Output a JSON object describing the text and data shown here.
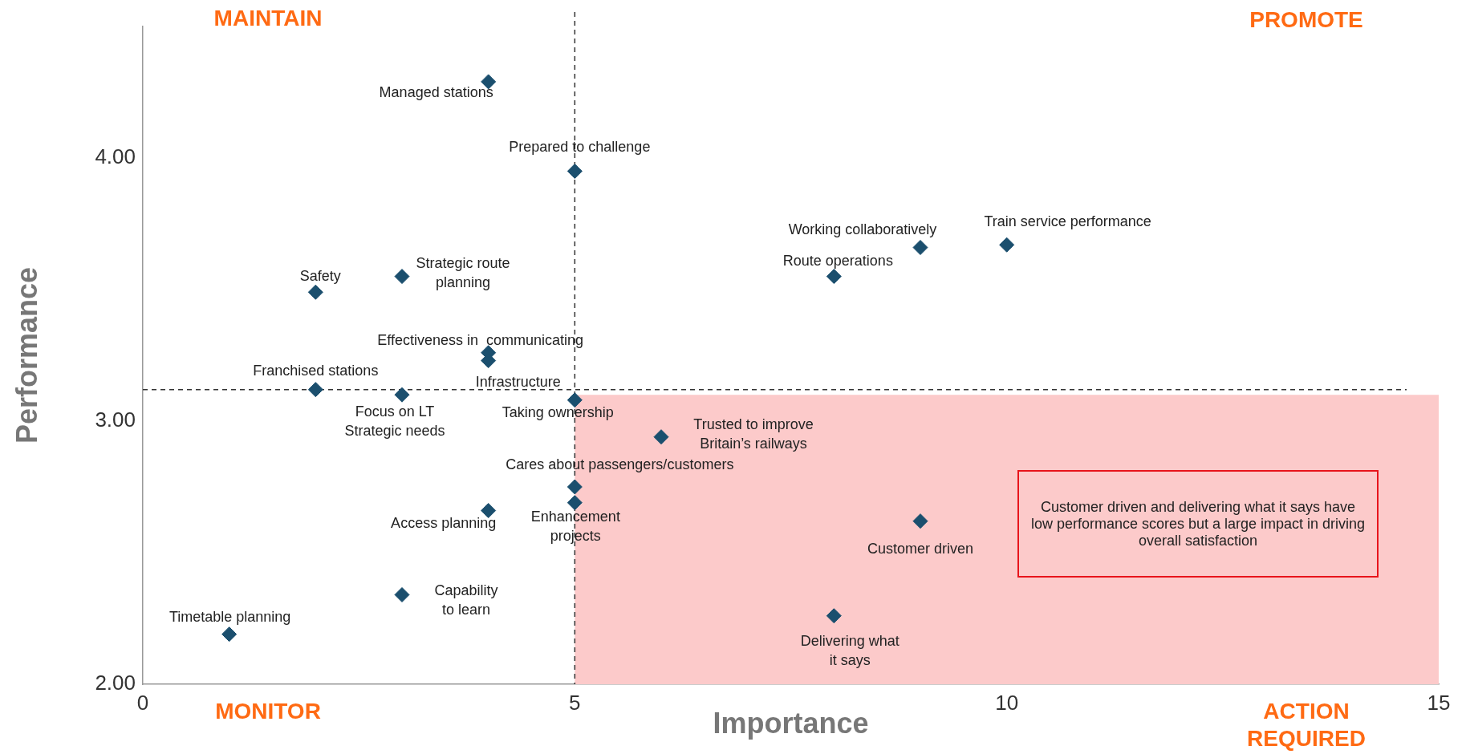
{
  "chart_data": {
    "type": "scatter",
    "xlabel": "Importance",
    "ylabel": "Performance",
    "xlim": [
      0,
      15
    ],
    "xticks": [
      0,
      5,
      10,
      15
    ],
    "ylim": [
      2,
      4.5
    ],
    "yticks": [
      {
        "value": 2,
        "label": "2.00"
      },
      {
        "value": 3,
        "label": "3.00"
      },
      {
        "value": 4,
        "label": "4.00"
      }
    ],
    "grid": false,
    "legend": false,
    "marker": "diamond",
    "series": [
      {
        "color": "#1b4f6e",
        "x": [
          4,
          5,
          9,
          10,
          8,
          3,
          2,
          4,
          4,
          2,
          3,
          5,
          6,
          5,
          5,
          4,
          9,
          3,
          8,
          1
        ],
        "values": [
          4.29,
          3.95,
          3.66,
          3.67,
          3.55,
          3.55,
          3.49,
          3.26,
          3.23,
          3.12,
          3.1,
          3.08,
          2.94,
          2.75,
          2.69,
          2.66,
          2.62,
          2.34,
          2.26,
          2.19
        ]
      }
    ],
    "ref_lines": [
      {
        "axis": "x",
        "value": 5,
        "color": "#333333",
        "line_style": "dashed"
      },
      {
        "axis": "y",
        "value": 3.12,
        "color": "#333333",
        "line_style": "dashed"
      }
    ],
    "bands": [
      {
        "axis": "y",
        "from": 2,
        "to": 3.1,
        "color": "#fccaca"
      }
    ],
    "annotations": [
      "MAINTAIN",
      "PROMOTE",
      "MONITOR",
      "ACTION\nREQUIRED",
      "Customer driven and delivering what it says have low performance scores but a large impact in driving overall satisfaction",
      {
        "text": "Managed stations",
        "x": 4,
        "y": 4.29
      },
      {
        "text": "Prepared to challenge",
        "x": 5,
        "y": 3.95
      },
      {
        "text": "Working collaboratively",
        "x": 9,
        "y": 3.66
      },
      {
        "text": "Train service performance",
        "x": 10,
        "y": 3.67
      },
      {
        "text": "Route operations",
        "x": 8,
        "y": 3.55
      },
      {
        "text": "Strategic route\nplanning",
        "x": 3,
        "y": 3.55
      },
      {
        "text": "Safety",
        "x": 2,
        "y": 3.49
      },
      {
        "text": "Effectiveness in  communicating",
        "x": 4,
        "y": 3.26
      },
      {
        "text": "Infrastructure",
        "x": 4,
        "y": 3.23
      },
      {
        "text": "Franchised stations",
        "x": 2,
        "y": 3.12
      },
      {
        "text": "Focus on LT\nStrategic needs",
        "x": 3,
        "y": 3.1
      },
      {
        "text": "Taking ownership",
        "x": 5,
        "y": 3.08
      },
      {
        "text": "Trusted to improve\nBritain’s railways",
        "x": 6,
        "y": 2.94
      },
      {
        "text": "Cares about passengers/customers",
        "x": 5,
        "y": 2.75
      },
      {
        "text": "Enhancement\nprojects",
        "x": 5,
        "y": 2.69
      },
      {
        "text": "Access planning",
        "x": 4,
        "y": 2.66
      },
      {
        "text": "Customer driven",
        "x": 9,
        "y": 2.62
      },
      {
        "text": "Capability\nto learn",
        "x": 3,
        "y": 2.34
      },
      {
        "text": "Delivering what\nit says",
        "x": 8,
        "y": 2.26
      },
      {
        "text": "Timetable planning",
        "x": 1,
        "y": 2.19
      }
    ]
  }
}
